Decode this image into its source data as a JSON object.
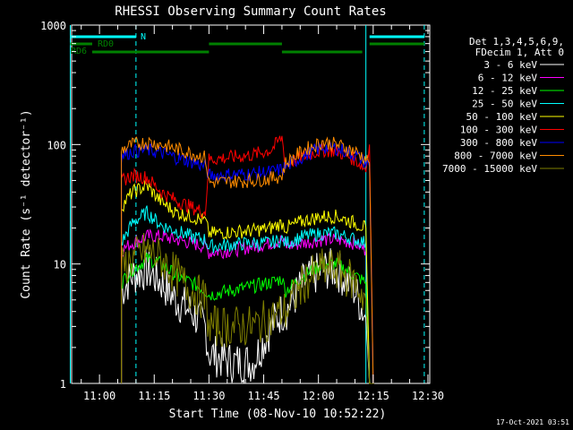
{
  "chart_data": {
    "type": "line",
    "title": "RHESSI Observing Summary Count Rates",
    "xlabel": "Start Time (08-Nov-10 10:52:22)",
    "ylabel": "Count Rate (s⁻¹ detector⁻¹)",
    "y_scale": "log",
    "ylim": [
      1,
      1000
    ],
    "xlim": [
      "10:52:22",
      "12:30:30"
    ],
    "x_ticks": [
      "11:00",
      "11:15",
      "11:30",
      "11:45",
      "12:00",
      "12:15",
      "12:30"
    ],
    "y_ticks": [
      "1",
      "10",
      "100",
      "1000"
    ],
    "grid": false,
    "legend_position": "right",
    "legend_header": [
      "Det 1,3,4,5,6,9,",
      "FDecim 1, Att 0"
    ],
    "footer": "17-Oct-2021 03:51",
    "state_bars": [
      {
        "label": "N",
        "color": "#00ffff",
        "intervals": [
          [
            "10:52",
            "11:10"
          ],
          [
            "12:14",
            "12:29"
          ]
        ]
      },
      {
        "label": "RD0",
        "color": "#008000",
        "intervals": [
          [
            "10:52",
            "10:58"
          ],
          [
            "11:30",
            "11:50"
          ],
          [
            "12:14",
            "12:29"
          ]
        ]
      },
      {
        "label": "RD6",
        "color": "#008000",
        "intervals": [
          [
            "10:58",
            "11:30"
          ],
          [
            "11:50",
            "12:12"
          ]
        ]
      }
    ],
    "vertical_lines": [
      {
        "time": "10:52",
        "style": "solid",
        "color": "#00ffff"
      },
      {
        "time": "11:10",
        "style": "dashed",
        "color": "#00ffff"
      },
      {
        "time": "12:13",
        "style": "solid",
        "color": "#00ffff"
      },
      {
        "time": "12:29",
        "style": "dashed",
        "color": "#00ffff"
      }
    ],
    "x_time_points": [
      "11:06",
      "11:09",
      "11:13",
      "11:17",
      "11:21",
      "11:25",
      "11:29",
      "11:30",
      "11:36",
      "11:42",
      "11:47",
      "11:50",
      "11:51",
      "11:56",
      "12:01",
      "12:05",
      "12:10",
      "12:13",
      "12:14",
      "12:15"
    ],
    "series": [
      {
        "name": "3 - 6 keV",
        "color": "#ffffff",
        "values": [
          6,
          8,
          9,
          7,
          5,
          4,
          3,
          1.8,
          1.5,
          1.5,
          3,
          4,
          4,
          7,
          9,
          9,
          6,
          3.5,
          1,
          1
        ]
      },
      {
        "name": "6 - 12 keV",
        "color": "#ff00ff",
        "values": [
          13,
          15,
          17,
          17,
          16,
          15,
          14,
          12.5,
          13,
          14,
          15,
          16,
          14,
          15,
          16,
          16,
          15,
          13,
          1,
          1
        ]
      },
      {
        "name": "12 - 25 keV",
        "color": "#00ff00",
        "values": [
          7,
          9,
          11,
          10,
          8,
          7,
          6,
          5.5,
          6,
          6.5,
          7,
          7.5,
          6,
          8,
          10,
          10,
          8,
          7,
          1,
          1
        ]
      },
      {
        "name": "25 - 50 keV",
        "color": "#00ffff",
        "values": [
          15,
          22,
          27,
          21,
          19,
          17,
          16,
          14,
          14.5,
          15,
          15,
          16,
          15,
          17,
          18,
          18,
          16,
          15,
          1,
          1
        ]
      },
      {
        "name": "50 - 100 keV",
        "color": "#ffff00",
        "values": [
          30,
          40,
          45,
          33,
          27,
          25,
          23,
          18,
          18.5,
          19,
          20,
          22,
          20,
          23,
          25,
          25,
          22,
          20,
          1,
          1
        ]
      },
      {
        "name": "100 - 300 keV",
        "color": "#ff0000",
        "values": [
          50,
          55,
          53,
          40,
          34,
          30,
          27,
          75,
          78,
          82,
          90,
          115,
          68,
          80,
          90,
          88,
          75,
          62,
          100,
          1
        ]
      },
      {
        "name": "300 - 800 keV",
        "color": "#0000ff",
        "values": [
          80,
          88,
          90,
          85,
          78,
          72,
          66,
          55,
          56,
          57,
          59,
          62,
          65,
          80,
          95,
          93,
          82,
          70,
          65,
          1
        ]
      },
      {
        "name": "800 - 7000 keV",
        "color": "#ff8c00",
        "values": [
          90,
          100,
          105,
          100,
          92,
          85,
          78,
          48,
          49,
          50,
          52,
          55,
          70,
          90,
          105,
          100,
          88,
          76,
          70,
          1
        ]
      },
      {
        "name": "7000 - 15000 keV",
        "color": "#808000",
        "values": [
          9,
          11,
          13,
          11,
          8,
          6,
          5,
          3,
          3,
          3,
          3.5,
          4,
          4,
          7,
          9,
          9,
          7,
          5,
          1,
          1
        ]
      }
    ]
  }
}
